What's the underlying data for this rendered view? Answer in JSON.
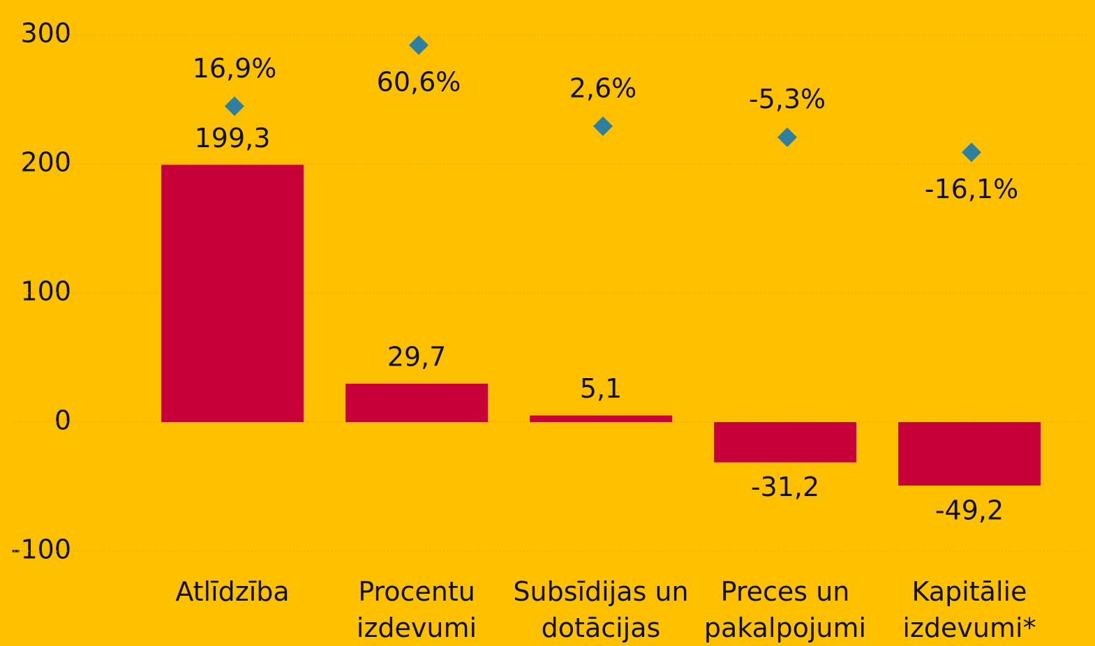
{
  "chart_data": {
    "type": "bar",
    "categories": [
      "Atlīdzība",
      "Procentu izdevumi",
      "Subsīdijas un dotācijas",
      "Preces un pakalpojumi",
      "Kapitālie izdevumi*"
    ],
    "series": [
      {
        "type": "bar",
        "color": "#c8003a",
        "values": [
          199.3,
          29.7,
          5.1,
          -31.2,
          -49.2
        ],
        "value_labels": [
          "199,3",
          "29,7",
          "5,1",
          "-31,2",
          "-49,2"
        ]
      },
      {
        "type": "scatter",
        "marker": "diamond",
        "axis": "y2",
        "color": "#2e7fa0",
        "values": [
          16.9,
          60.6,
          2.6,
          -5.3,
          -16.1
        ],
        "value_labels": [
          "16,9%",
          "60,6%",
          "2,6%",
          "-5,3%",
          "-16,1%"
        ]
      }
    ],
    "ylim": [
      -100,
      300
    ],
    "yticks": [
      -100,
      0,
      100,
      200,
      300
    ],
    "y2lim": [
      -301.7,
      68
    ],
    "grid": true
  }
}
